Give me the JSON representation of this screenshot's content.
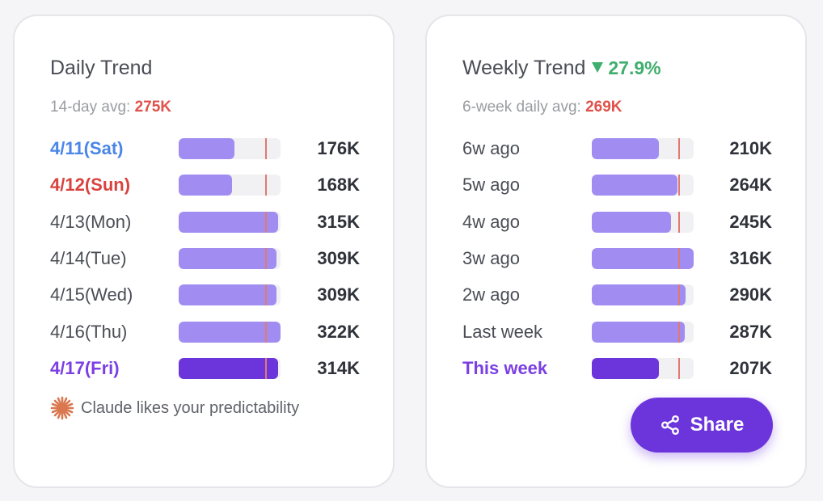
{
  "daily": {
    "title": "Daily Trend",
    "avg_label": "14-day avg: ",
    "avg_value": "275K",
    "avg_fraction": 0.85,
    "rows": [
      {
        "label": "4/11(Sat)",
        "value": "176K",
        "fraction": 0.55,
        "kind": "sat"
      },
      {
        "label": "4/12(Sun)",
        "value": "168K",
        "fraction": 0.52,
        "kind": "sun"
      },
      {
        "label": "4/13(Mon)",
        "value": "315K",
        "fraction": 0.98,
        "kind": "normal"
      },
      {
        "label": "4/14(Tue)",
        "value": "309K",
        "fraction": 0.96,
        "kind": "normal"
      },
      {
        "label": "4/15(Wed)",
        "value": "309K",
        "fraction": 0.96,
        "kind": "normal"
      },
      {
        "label": "4/16(Thu)",
        "value": "322K",
        "fraction": 1.0,
        "kind": "normal"
      },
      {
        "label": "4/17(Fri)",
        "value": "314K",
        "fraction": 0.98,
        "kind": "current"
      }
    ],
    "footnote": "Claude likes your predictability"
  },
  "weekly": {
    "title": "Weekly Trend",
    "delta": "27.9%",
    "avg_label": "6-week daily avg: ",
    "avg_value": "269K",
    "avg_fraction": 0.85,
    "rows": [
      {
        "label": "6w ago",
        "value": "210K",
        "fraction": 0.66,
        "kind": "normal"
      },
      {
        "label": "5w ago",
        "value": "264K",
        "fraction": 0.84,
        "kind": "normal"
      },
      {
        "label": "4w ago",
        "value": "245K",
        "fraction": 0.78,
        "kind": "normal"
      },
      {
        "label": "3w ago",
        "value": "316K",
        "fraction": 1.0,
        "kind": "normal"
      },
      {
        "label": "2w ago",
        "value": "290K",
        "fraction": 0.92,
        "kind": "normal"
      },
      {
        "label": "Last week",
        "value": "287K",
        "fraction": 0.91,
        "kind": "normal"
      },
      {
        "label": "This week",
        "value": "207K",
        "fraction": 0.66,
        "kind": "current"
      }
    ],
    "share_label": "Share"
  },
  "colors": {
    "bar": "#a18cf2",
    "bar_current": "#6c35dc",
    "avg_line": "#e07a72",
    "saturday": "#4a86e8",
    "sunday": "#d9433f",
    "delta_down": "#3fae6e"
  },
  "icons": {
    "footnote": "claude-spark-icon",
    "share": "share-icon",
    "delta": "triangle-down-icon"
  }
}
